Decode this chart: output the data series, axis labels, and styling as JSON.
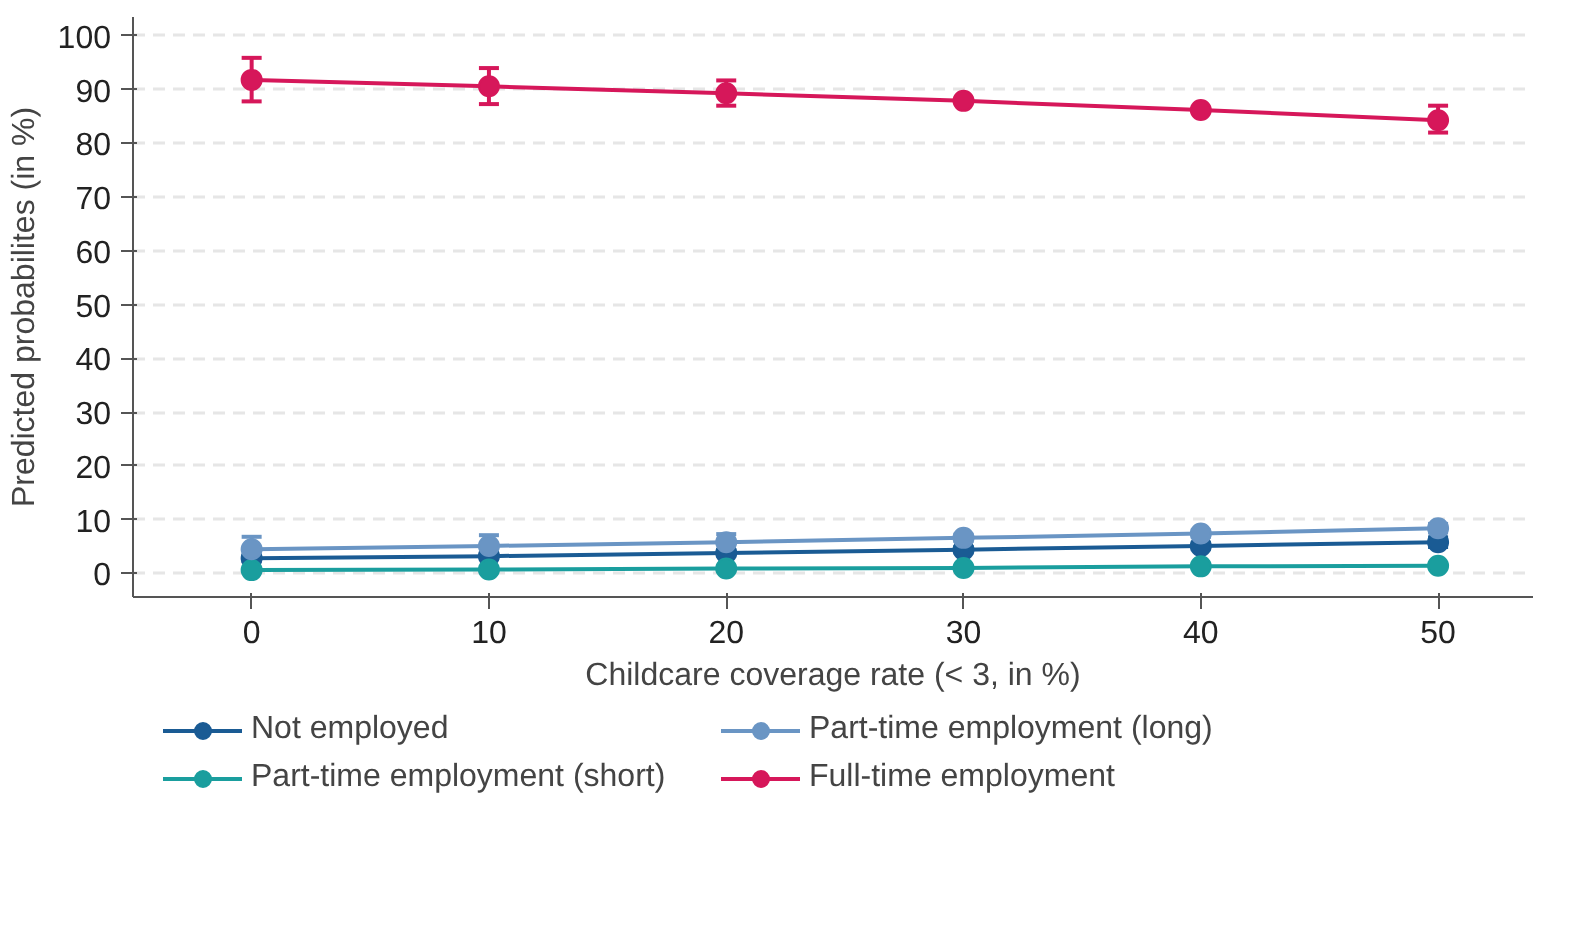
{
  "chart_data": {
    "type": "line",
    "xlabel": "Childcare coverage rate (< 3, in %)",
    "ylabel": "Predicted probabilites (in %)",
    "x": [
      0,
      10,
      20,
      30,
      40,
      50
    ],
    "series": [
      {
        "name": "Not employed",
        "color": "#1a5b94",
        "values": [
          2.8,
          3.2,
          3.8,
          4.4,
          5.1,
          5.8
        ],
        "errors": [
          0.5,
          0.5,
          0.5,
          0.5,
          0.6,
          0.9
        ]
      },
      {
        "name": "Part-time employment (short)",
        "color": "#1a9e9e",
        "values": [
          0.6,
          0.7,
          0.9,
          1.0,
          1.3,
          1.4
        ],
        "errors": [
          null,
          null,
          null,
          null,
          null,
          null
        ]
      },
      {
        "name": "Part-time employment (long)",
        "color": "#6a95c4",
        "values": [
          4.5,
          5.1,
          5.8,
          6.6,
          7.4,
          8.4
        ],
        "errors": [
          2.3,
          2.0,
          1.5,
          0.6,
          0.6,
          0.8
        ]
      },
      {
        "name": "Full-time employment",
        "color": "#d6175a",
        "values": [
          91.8,
          90.6,
          89.3,
          87.9,
          86.2,
          84.3
        ],
        "errors": [
          [
            87.8,
            95.9
          ],
          [
            87.3,
            94.0
          ],
          [
            87.0,
            91.7
          ],
          null,
          null,
          [
            82.0,
            87.0
          ]
        ]
      }
    ],
    "xlim": [
      -5,
      54
    ],
    "ylim": [
      -4.4,
      103.5
    ],
    "xticks": [
      0,
      10,
      20,
      30,
      40,
      50
    ],
    "yticks": [
      0,
      10,
      20,
      30,
      40,
      50,
      60,
      70,
      80,
      90,
      100
    ],
    "grid": "y",
    "legend": "bottom",
    "marker": "circle",
    "line_style": "solid"
  }
}
